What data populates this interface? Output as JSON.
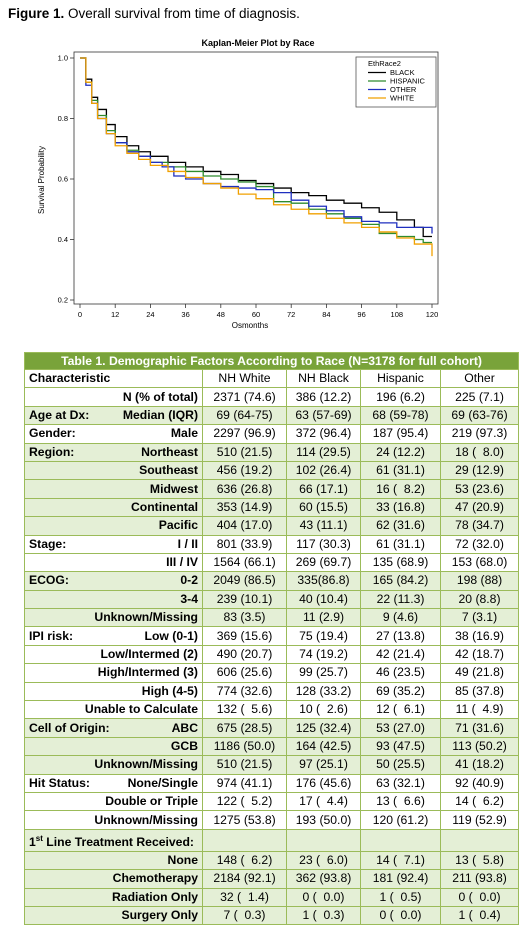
{
  "caption": {
    "bold": "Figure 1.",
    "text": " Overall survival from time of diagnosis."
  },
  "chart_data": {
    "type": "line",
    "title": "Kaplan-Meier Plot by Race",
    "xlabel": "Osmonths",
    "ylabel": "Survival Probability",
    "xlim": [
      0,
      120
    ],
    "ylim": [
      0.2,
      1.0
    ],
    "xticks": [
      "0",
      "12",
      "24",
      "36",
      "48",
      "60",
      "72",
      "84",
      "96",
      "108",
      "120"
    ],
    "yticks": [
      "0.2",
      "0.4",
      "0.6",
      "0.8",
      "1.0"
    ],
    "legend_title": "EthRace2",
    "legend_position": "top-right",
    "series": [
      {
        "name": "BLACK",
        "color": "#000000",
        "points": [
          [
            0,
            1.0
          ],
          [
            2,
            0.93
          ],
          [
            4,
            0.87
          ],
          [
            6,
            0.83
          ],
          [
            9,
            0.78
          ],
          [
            12,
            0.74
          ],
          [
            16,
            0.71
          ],
          [
            20,
            0.69
          ],
          [
            24,
            0.675
          ],
          [
            30,
            0.655
          ],
          [
            36,
            0.64
          ],
          [
            42,
            0.625
          ],
          [
            48,
            0.615
          ],
          [
            54,
            0.595
          ],
          [
            60,
            0.585
          ],
          [
            66,
            0.57
          ],
          [
            72,
            0.555
          ],
          [
            78,
            0.545
          ],
          [
            84,
            0.53
          ],
          [
            90,
            0.52
          ],
          [
            96,
            0.505
          ],
          [
            102,
            0.49
          ],
          [
            108,
            0.465
          ],
          [
            114,
            0.44
          ],
          [
            117,
            0.41
          ],
          [
            120,
            0.41
          ]
        ]
      },
      {
        "name": "HISPANIC",
        "color": "#2e8b2e",
        "points": [
          [
            0,
            1.0
          ],
          [
            2,
            0.92
          ],
          [
            4,
            0.86
          ],
          [
            6,
            0.81
          ],
          [
            9,
            0.76
          ],
          [
            12,
            0.72
          ],
          [
            16,
            0.695
          ],
          [
            20,
            0.675
          ],
          [
            24,
            0.655
          ],
          [
            30,
            0.64
          ],
          [
            36,
            0.625
          ],
          [
            42,
            0.61
          ],
          [
            48,
            0.6
          ],
          [
            54,
            0.59
          ],
          [
            60,
            0.575
          ],
          [
            66,
            0.525
          ],
          [
            72,
            0.52
          ],
          [
            78,
            0.5
          ],
          [
            84,
            0.485
          ],
          [
            90,
            0.47
          ],
          [
            96,
            0.45
          ],
          [
            102,
            0.42
          ],
          [
            108,
            0.41
          ],
          [
            114,
            0.4
          ],
          [
            117,
            0.39
          ],
          [
            120,
            0.39
          ]
        ]
      },
      {
        "name": "OTHER",
        "color": "#1f2fbf",
        "points": [
          [
            0,
            1.0
          ],
          [
            2,
            0.91
          ],
          [
            4,
            0.85
          ],
          [
            6,
            0.8
          ],
          [
            9,
            0.75
          ],
          [
            12,
            0.72
          ],
          [
            16,
            0.69
          ],
          [
            20,
            0.675
          ],
          [
            24,
            0.655
          ],
          [
            28,
            0.64
          ],
          [
            32,
            0.61
          ],
          [
            36,
            0.6
          ],
          [
            42,
            0.585
          ],
          [
            48,
            0.575
          ],
          [
            54,
            0.57
          ],
          [
            60,
            0.565
          ],
          [
            66,
            0.555
          ],
          [
            72,
            0.53
          ],
          [
            78,
            0.51
          ],
          [
            84,
            0.495
          ],
          [
            90,
            0.475
          ],
          [
            96,
            0.46
          ],
          [
            102,
            0.455
          ],
          [
            108,
            0.44
          ],
          [
            114,
            0.44
          ],
          [
            120,
            0.42
          ]
        ]
      },
      {
        "name": "WHITE",
        "color": "#f0a000",
        "points": [
          [
            0,
            1.0
          ],
          [
            2,
            0.92
          ],
          [
            4,
            0.85
          ],
          [
            6,
            0.8
          ],
          [
            9,
            0.75
          ],
          [
            12,
            0.71
          ],
          [
            16,
            0.685
          ],
          [
            20,
            0.665
          ],
          [
            24,
            0.645
          ],
          [
            30,
            0.625
          ],
          [
            36,
            0.605
          ],
          [
            42,
            0.585
          ],
          [
            48,
            0.57
          ],
          [
            54,
            0.55
          ],
          [
            60,
            0.535
          ],
          [
            66,
            0.515
          ],
          [
            72,
            0.5
          ],
          [
            78,
            0.485
          ],
          [
            84,
            0.47
          ],
          [
            90,
            0.455
          ],
          [
            96,
            0.44
          ],
          [
            102,
            0.425
          ],
          [
            108,
            0.405
          ],
          [
            114,
            0.385
          ],
          [
            120,
            0.345
          ]
        ]
      }
    ]
  },
  "table": {
    "title": "Table 1. Demographic Factors According to Race (N=3178 for full cohort)",
    "headers": [
      "Characteristic",
      "NH White",
      "NH Black",
      "Hispanic",
      "Other"
    ],
    "rows": [
      {
        "group": "",
        "label": "N (% of total)",
        "vals": [
          "2371 (74.6)",
          "386 (12.2)",
          "196 (6.2)",
          "225 (7.1)"
        ],
        "shade": false,
        "end": true
      },
      {
        "group": "Age at Dx:",
        "label": "Median (IQR)",
        "vals": [
          "69 (64-75)",
          "63 (57-69)",
          "68 (59-78)",
          "69 (63-76)"
        ],
        "shade": true,
        "end": true
      },
      {
        "group": "Gender:",
        "label": "Male",
        "vals": [
          "2297 (96.9)",
          "372 (96.4)",
          "187 (95.4)",
          "219 (97.3)"
        ],
        "shade": false,
        "end": true
      },
      {
        "group": "Region:",
        "label": "Northeast",
        "vals": [
          "510 (21.5)",
          "114 (29.5)",
          "24 (12.2)",
          "18 (  8.0)"
        ],
        "shade": true,
        "end": false
      },
      {
        "group": "",
        "label": "Southeast",
        "vals": [
          "456 (19.2)",
          "102 (26.4)",
          "61 (31.1)",
          "29 (12.9)"
        ],
        "shade": true,
        "end": false
      },
      {
        "group": "",
        "label": "Midwest",
        "vals": [
          "636 (26.8)",
          "66 (17.1)",
          "16 (  8.2)",
          "53 (23.6)"
        ],
        "shade": true,
        "end": false
      },
      {
        "group": "",
        "label": "Continental",
        "vals": [
          "353 (14.9)",
          "60 (15.5)",
          "33 (16.8)",
          "47 (20.9)"
        ],
        "shade": true,
        "end": false
      },
      {
        "group": "",
        "label": "Pacific",
        "vals": [
          "404 (17.0)",
          "43 (11.1)",
          "62 (31.6)",
          "78 (34.7)"
        ],
        "shade": true,
        "end": true
      },
      {
        "group": "Stage:",
        "label": "I / II",
        "vals": [
          "801 (33.9)",
          "117 (30.3)",
          "61 (31.1)",
          "72 (32.0)"
        ],
        "shade": false,
        "end": false
      },
      {
        "group": "",
        "label": "III / IV",
        "vals": [
          "1564 (66.1)",
          "269 (69.7)",
          "135 (68.9)",
          "153 (68.0)"
        ],
        "shade": false,
        "end": true
      },
      {
        "group": "ECOG:",
        "label": "0-2",
        "vals": [
          "2049 (86.5)",
          "335(86.8)",
          "165 (84.2)",
          "198 (88)"
        ],
        "shade": true,
        "end": false
      },
      {
        "group": "",
        "label": "3-4",
        "vals": [
          "239 (10.1)",
          "40 (10.4)",
          "22 (11.3)",
          "20 (8.8)"
        ],
        "shade": true,
        "end": false
      },
      {
        "group": "",
        "label": "Unknown/Missing",
        "vals": [
          "83 (3.5)",
          "11 (2.9)",
          "9 (4.6)",
          "7 (3.1)"
        ],
        "shade": true,
        "end": true
      },
      {
        "group": "IPI risk:",
        "label": "Low (0-1)",
        "vals": [
          "369 (15.6)",
          "75 (19.4)",
          "27 (13.8)",
          "38 (16.9)"
        ],
        "shade": false,
        "end": false
      },
      {
        "group": "",
        "label": "Low/Intermed (2)",
        "vals": [
          "490 (20.7)",
          "74 (19.2)",
          "42 (21.4)",
          "42 (18.7)"
        ],
        "shade": false,
        "end": false
      },
      {
        "group": "",
        "label": "High/Intermed (3)",
        "vals": [
          "606 (25.6)",
          "99 (25.7)",
          "46 (23.5)",
          "49 (21.8)"
        ],
        "shade": false,
        "end": false
      },
      {
        "group": "",
        "label": "High (4-5)",
        "vals": [
          "774 (32.6)",
          "128 (33.2)",
          "69 (35.2)",
          "85 (37.8)"
        ],
        "shade": false,
        "end": false
      },
      {
        "group": "",
        "label": "Unable to Calculate",
        "vals": [
          "132 (  5.6)",
          "10 (  2.6)",
          "12 (  6.1)",
          "11 (  4.9)"
        ],
        "shade": false,
        "end": true
      },
      {
        "group": "Cell of Origin:",
        "label": "ABC",
        "vals": [
          "675 (28.5)",
          "125 (32.4)",
          "53 (27.0)",
          "71 (31.6)"
        ],
        "shade": true,
        "end": false
      },
      {
        "group": "",
        "label": "GCB",
        "vals": [
          "1186 (50.0)",
          "164 (42.5)",
          "93 (47.5)",
          "113 (50.2)"
        ],
        "shade": true,
        "end": false
      },
      {
        "group": "",
        "label": "Unknown/Missing",
        "vals": [
          "510 (21.5)",
          "97 (25.1)",
          "50 (25.5)",
          "41 (18.2)"
        ],
        "shade": true,
        "end": true
      },
      {
        "group": "Hit Status:",
        "label": "None/Single",
        "vals": [
          "974 (41.1)",
          "176 (45.6)",
          "63 (32.1)",
          "92 (40.9)"
        ],
        "shade": false,
        "end": false
      },
      {
        "group": "",
        "label": "Double or Triple",
        "vals": [
          "122 (  5.2)",
          "17 (  4.4)",
          "13 (  6.6)",
          "14 (  6.2)"
        ],
        "shade": false,
        "end": false
      },
      {
        "group": "",
        "label": "Unknown/Missing",
        "vals": [
          "1275 (53.8)",
          "193 (50.0)",
          "120 (61.2)",
          "119 (52.9)"
        ],
        "shade": false,
        "end": true
      },
      {
        "group": "1st Line Treatment Received:",
        "label": "",
        "vals": [
          "",
          "",
          "",
          ""
        ],
        "shade": true,
        "end": false,
        "sup": true
      },
      {
        "group": "",
        "label": "None",
        "vals": [
          "148 (  6.2)",
          "23 (  6.0)",
          "14 (  7.1)",
          "13 (  5.8)"
        ],
        "shade": true,
        "end": false
      },
      {
        "group": "",
        "label": "Chemotherapy",
        "vals": [
          "2184 (92.1)",
          "362 (93.8)",
          "181 (92.4)",
          "211 (93.8)"
        ],
        "shade": true,
        "end": false
      },
      {
        "group": "",
        "label": "Radiation Only",
        "vals": [
          "32 (  1.4)",
          "0 (  0.0)",
          "1 (  0.5)",
          "0 (  0.0)"
        ],
        "shade": true,
        "end": false
      },
      {
        "group": "",
        "label": "Surgery Only",
        "vals": [
          "7 (  0.3)",
          "1 (  0.3)",
          "0 (  0.0)",
          "1 (  0.4)"
        ],
        "shade": true,
        "end": true
      }
    ]
  }
}
